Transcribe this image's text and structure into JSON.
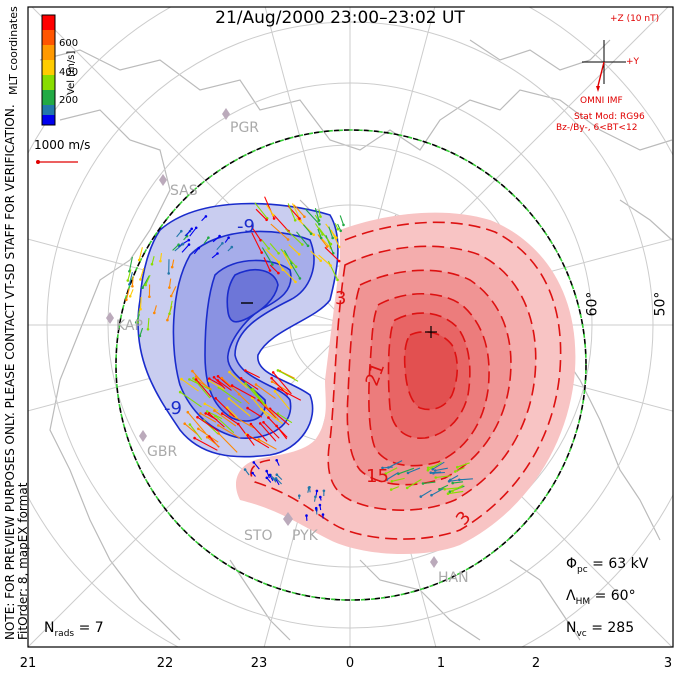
{
  "title": "21/Aug/2000 23:00–23:02 UT",
  "colorbar": {
    "label": "Vel [m/s]",
    "ticks": [
      "600",
      "400",
      "200"
    ],
    "coordinates": "MLT coordinates",
    "colors": [
      "#ff0000",
      "#ff8800",
      "#ffcc00",
      "#88dd00",
      "#22aa44",
      "#2277aa",
      "#0000ee"
    ]
  },
  "scale_vector": {
    "label": "1000 m/s",
    "color": "#e00000"
  },
  "imf": {
    "plus_z": "+Z (10 nT)",
    "plus_y": "+Y",
    "source": "OMNI IMF",
    "model": "Stat Mod: RG96",
    "condition": "Bz-/By-, 6<BT<12",
    "color": "#e00000"
  },
  "note": {
    "line1": "NOTE: FOR PREVIEW PURPOSES ONLY. PLEASE CONTACT VT-SD STAFF FOR VERIFICATION.",
    "line2": "FitOrder: 8, mapEX format"
  },
  "stats": {
    "phi_symbol": "Φ",
    "phi_sub": "pc",
    "phi_value": "= 63 kV",
    "lambda_symbol": "Λ",
    "lambda_sub": "HM",
    "lambda_value": "= 60°",
    "nvc_symbol": "N",
    "nvc_sub": "vc",
    "nvc_value": "= 285",
    "nrads_symbol": "N",
    "nrads_sub": "rads",
    "nrads_value": "= 7"
  },
  "mlt_ticks": [
    "21",
    "22",
    "23",
    "0",
    "1",
    "2",
    "3"
  ],
  "latitude_labels": [
    "60°",
    "50°"
  ],
  "stations": [
    "PGR",
    "SAS",
    "KAP",
    "GBR",
    "STO",
    "PYK",
    "HAN"
  ],
  "contours": {
    "negative_labels": [
      "-9",
      "-9",
      "–"
    ],
    "positive_labels": [
      "3",
      "21",
      "15",
      "3"
    ],
    "negative_color": "#1a2ccc",
    "positive_color": "#dd1111"
  },
  "colors": {
    "convection_negative_fill": "#c9cdf0",
    "convection_positive_fill": "#f8c4c4",
    "heppner_maynard_boundary": "#33cc33",
    "grid": "#cccccc",
    "coastline": "#bbbbbb"
  }
}
